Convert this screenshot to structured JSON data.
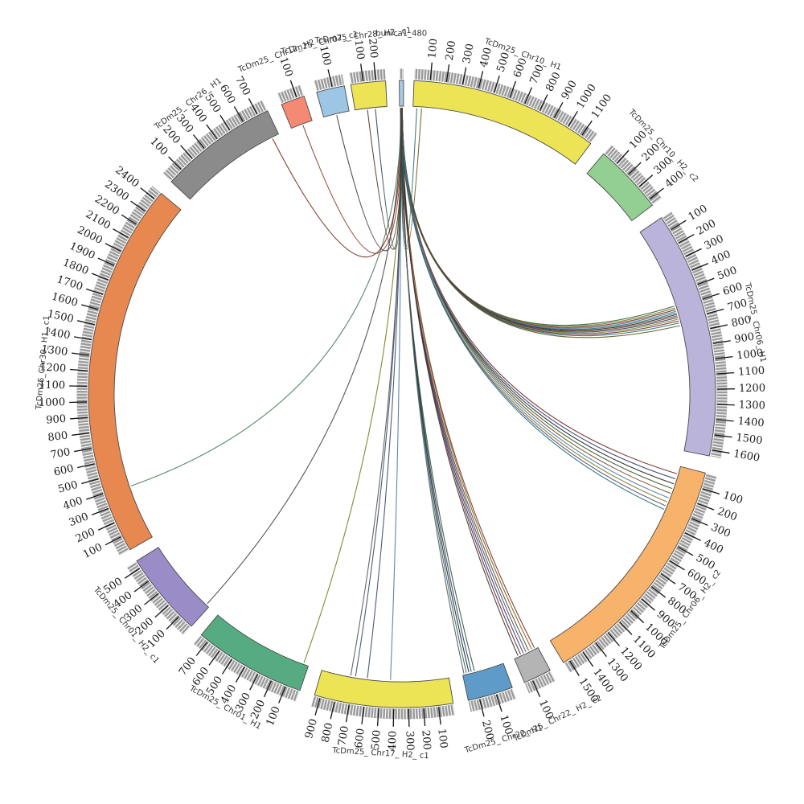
{
  "chart_data": {
    "type": "chord",
    "subtype": "circos-synteny-plot",
    "title": "",
    "tick_unit": 100,
    "legend": "none",
    "source": {
      "segment": "bunica1_480",
      "pos": 15
    },
    "segments": [
      {
        "id": "bunica1_480",
        "label": "bunica1_480",
        "start_deg": 359.5,
        "end_deg": 360.3,
        "length": 30,
        "color": "#a9cbe2",
        "ticks": []
      },
      {
        "id": "Chr10_H1",
        "label": "TcDm25_ Chr10_ H1",
        "start_deg": 2.2,
        "end_deg": 37.0,
        "length": 1174,
        "color": "#ece454",
        "ticks": [
          100,
          200,
          300,
          400,
          500,
          600,
          700,
          800,
          900,
          1000,
          1100
        ]
      },
      {
        "id": "Chr10_H2_c2",
        "label": "TcDm25_ Chr10_ H2_ c2",
        "start_deg": 40.0,
        "end_deg": 53.0,
        "length": 440,
        "color": "#93cf93",
        "ticks": [
          100,
          200,
          300,
          400
        ]
      },
      {
        "id": "Chr06_H1",
        "label": "TcDm25_ Chr06_ H1",
        "start_deg": 55.8,
        "end_deg": 101.4,
        "length": 1642,
        "color": "#bab4da",
        "ticks": [
          100,
          200,
          300,
          400,
          500,
          600,
          700,
          800,
          900,
          1000,
          1100,
          1200,
          1300,
          1400,
          1500,
          1600
        ]
      },
      {
        "id": "Chr06_H2_c2",
        "label": "TcDm25_ Chr06_ H2_ c2",
        "start_deg": 104.6,
        "end_deg": 149.0,
        "length": 1540,
        "color": "#f7b26b",
        "ticks": [
          100,
          200,
          300,
          400,
          500,
          600,
          700,
          800,
          900,
          1000,
          1100,
          1200,
          1300,
          1400,
          1500
        ]
      },
      {
        "id": "Chr22_H2_c2",
        "label": "TcDm25_ Chr22_ H2_ c2",
        "start_deg": 151.8,
        "end_deg": 157.0,
        "length": 140,
        "color": "#b4b4b4",
        "ticks": [
          100
        ]
      },
      {
        "id": "Chr22_H1",
        "label": "TcDm25_ Chr22_ H1",
        "start_deg": 159.4,
        "end_deg": 167.8,
        "length": 265,
        "color": "#5e9bc8",
        "ticks": [
          100,
          200
        ]
      },
      {
        "id": "Chr17_H2_c1",
        "label": "TcDm25_ Chr17_ H2_ c1",
        "start_deg": 170.6,
        "end_deg": 196.2,
        "length": 940,
        "color": "#ece454",
        "ticks": [
          100,
          200,
          300,
          400,
          500,
          600,
          700,
          800,
          900
        ]
      },
      {
        "id": "Chr01_H1",
        "label": "TcDm25_ Chr01_ H1",
        "start_deg": 199.0,
        "end_deg": 219.8,
        "length": 760,
        "color": "#57ab82",
        "ticks": [
          100,
          200,
          300,
          400,
          500,
          600,
          700
        ]
      },
      {
        "id": "Chr01_H2_c1",
        "label": "TcDm25_ Chr01_ H2_ c1",
        "start_deg": 222.2,
        "end_deg": 237.8,
        "length": 550,
        "color": "#9a8cc6",
        "ticks": [
          100,
          200,
          300,
          400,
          500
        ]
      },
      {
        "id": "Chr30_H1_c1",
        "label": "TcDm25_Chr30_ H1_ c1",
        "start_deg": 240.2,
        "end_deg": 309.8,
        "length": 2455,
        "color": "#e78851",
        "ticks": [
          100,
          200,
          300,
          400,
          500,
          600,
          700,
          800,
          900,
          1000,
          1100,
          1200,
          1300,
          1400,
          1500,
          1600,
          1700,
          1800,
          1900,
          2000,
          2100,
          2200,
          2300,
          2400
        ]
      },
      {
        "id": "Chr26_H1",
        "label": "TcDm25_ Chr26_ H1",
        "start_deg": 312.6,
        "end_deg": 334.6,
        "length": 770,
        "color": "#8b8b8b",
        "ticks": [
          100,
          200,
          300,
          400,
          500,
          600,
          700
        ]
      },
      {
        "id": "Chr12_H2",
        "label": "TcDm25_ Chr12_ H2",
        "start_deg": 337.4,
        "end_deg": 341.8,
        "length": 145,
        "color": "#f48a74",
        "ticks": [
          100
        ]
      },
      {
        "id": "Chr07_c1",
        "label": "TcDm25_ Chr07_ c1",
        "start_deg": 344.2,
        "end_deg": 349.4,
        "length": 175,
        "color": "#9cc6e4",
        "ticks": [
          100
        ]
      },
      {
        "id": "Chr28_H2_c1",
        "label": "TcDm25_ Chr28_ H2_ c1",
        "start_deg": 350.6,
        "end_deg": 357.0,
        "length": 280,
        "color": "#ece454",
        "ticks": [
          100,
          200
        ]
      }
    ],
    "links": [
      {
        "target": "Chr10_H1",
        "pos": 26,
        "color": "#2e6e6e"
      },
      {
        "target": "Chr10_H1",
        "pos": 58,
        "color": "#6e5a1e"
      },
      {
        "target": "Chr06_H1",
        "pos": 588,
        "color": "#2d5a2d"
      },
      {
        "target": "Chr06_H1",
        "pos": 602,
        "color": "#7a7a24"
      },
      {
        "target": "Chr06_H1",
        "pos": 615,
        "color": "#7a2e1e"
      },
      {
        "target": "Chr06_H1",
        "pos": 627,
        "color": "#4a7aa8"
      },
      {
        "target": "Chr06_H1",
        "pos": 639,
        "color": "#2e6e6e"
      },
      {
        "target": "Chr06_H1",
        "pos": 650,
        "color": "#222222"
      },
      {
        "target": "Chr06_H1",
        "pos": 661,
        "color": "#7a4a22"
      },
      {
        "target": "Chr06_H1",
        "pos": 673,
        "color": "#2e3e6e"
      },
      {
        "target": "Chr06_H1",
        "pos": 686,
        "color": "#8a8a3a"
      },
      {
        "target": "Chr06_H1",
        "pos": 699,
        "color": "#6e2222"
      },
      {
        "target": "Chr06_H1",
        "pos": 714,
        "color": "#1f6f6f"
      },
      {
        "target": "Chr06_H1",
        "pos": 734,
        "color": "#55551f"
      },
      {
        "target": "Chr06_H2_c2",
        "pos": 55,
        "color": "#6e2222"
      },
      {
        "target": "Chr06_H2_c2",
        "pos": 92,
        "color": "#2e3e6e"
      },
      {
        "target": "Chr06_H2_c2",
        "pos": 128,
        "color": "#222222"
      },
      {
        "target": "Chr06_H2_c2",
        "pos": 163,
        "color": "#2d5a2d"
      },
      {
        "target": "Chr06_H2_c2",
        "pos": 198,
        "color": "#7a4a22"
      },
      {
        "target": "Chr06_H2_c2",
        "pos": 232,
        "color": "#4a7aa8"
      },
      {
        "target": "Chr06_H2_c2",
        "pos": 262,
        "color": "#7a7a24"
      },
      {
        "target": "Chr06_H2_c2",
        "pos": 291,
        "color": "#5a4a7a"
      },
      {
        "target": "Chr06_H2_c2",
        "pos": 318,
        "color": "#1f6f6f"
      },
      {
        "target": "Chr22_H2_c2",
        "pos": 18,
        "color": "#7a2e1e"
      },
      {
        "target": "Chr22_H2_c2",
        "pos": 34,
        "color": "#8a5a2a"
      },
      {
        "target": "Chr22_H2_c2",
        "pos": 52,
        "color": "#55551f"
      },
      {
        "target": "Chr22_H2_c2",
        "pos": 68,
        "color": "#5a4a7a"
      },
      {
        "target": "Chr22_H2_c2",
        "pos": 84,
        "color": "#2e3e6e"
      },
      {
        "target": "Chr22_H2_c2",
        "pos": 100,
        "color": "#6e2222"
      },
      {
        "target": "Chr22_H2_c2",
        "pos": 116,
        "color": "#333333"
      },
      {
        "target": "Chr22_H1",
        "pos": 188,
        "color": "#2d5a2d"
      },
      {
        "target": "Chr22_H1",
        "pos": 208,
        "color": "#2e3e6e"
      },
      {
        "target": "Chr22_H1",
        "pos": 224,
        "color": "#222222"
      },
      {
        "target": "Chr22_H1",
        "pos": 240,
        "color": "#2e6e6e"
      },
      {
        "target": "Chr22_H1",
        "pos": 256,
        "color": "#555555"
      },
      {
        "target": "Chr17_H2_c1",
        "pos": 430,
        "color": "#4a7aa8"
      },
      {
        "target": "Chr17_H2_c1",
        "pos": 600,
        "color": "#3a4a6a"
      },
      {
        "target": "Chr17_H2_c1",
        "pos": 688,
        "color": "#3a4a6a"
      },
      {
        "target": "Chr17_H2_c1",
        "pos": 724,
        "color": "#555555"
      },
      {
        "target": "Chr01_H1",
        "pos": 38,
        "color": "#7a7a24"
      },
      {
        "target": "Chr01_H2_c1",
        "pos": 24,
        "color": "#444444"
      },
      {
        "target": "Chr30_H1_c1",
        "pos": 390,
        "color": "#4a7a5a"
      },
      {
        "target": "Chr26_H1",
        "pos": 718,
        "color": "#6e2a1a"
      },
      {
        "target": "Chr12_H2",
        "pos": 78,
        "color": "#8b3a2a"
      },
      {
        "target": "Chr07_c1",
        "pos": 88,
        "color": "#3a3a3a"
      },
      {
        "target": "Chr28_H2_c1",
        "pos": 108,
        "color": "#4a3a2a"
      },
      {
        "target": "Chr28_H2_c1",
        "pos": 178,
        "color": "#2a4a4a"
      }
    ],
    "style": {
      "band_outline": "#4a4a4a",
      "minor_tick_band": "#9a9a9a",
      "tick_color": "#111111",
      "tick_label_color": "#1a1a1a",
      "name_label_color": "#333333",
      "background": "#ffffff"
    }
  }
}
